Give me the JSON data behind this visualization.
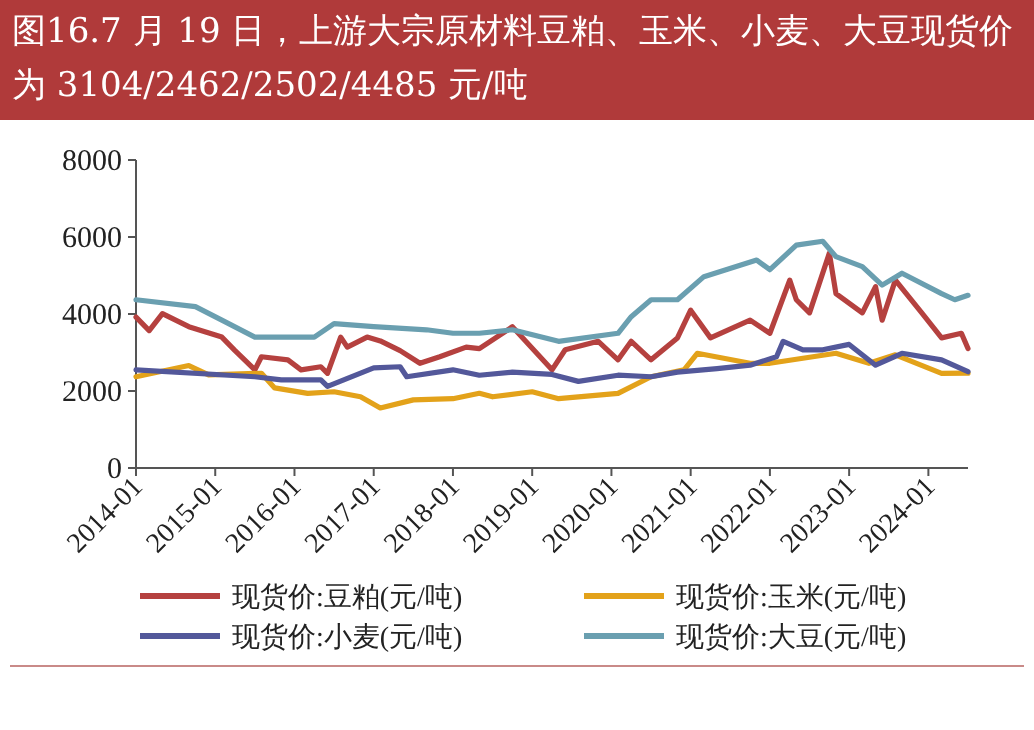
{
  "chart_data": {
    "type": "line",
    "title": "图16.7 月 19 日，上游大宗原材料豆粕、玉米、小麦、大豆现货价为 3104/2462/2502/4485 元/吨",
    "xlim": [
      "2014-01",
      "2024-07"
    ],
    "xticks": [
      "2014-01",
      "2015-01",
      "2016-01",
      "2017-01",
      "2018-01",
      "2019-01",
      "2020-01",
      "2021-01",
      "2022-01",
      "2023-01",
      "2024-01"
    ],
    "ylim": [
      0,
      8000
    ],
    "yticks": [
      0,
      2000,
      4000,
      6000,
      8000
    ],
    "grid": false,
    "legend": "bottom",
    "marker": "none",
    "line_style": "solid",
    "series": [
      {
        "name": "现货价:豆粕(元/吨)",
        "color": "#b5413f",
        "x": [
          "2014-01",
          "2014-03",
          "2014-05",
          "2014-09",
          "2015-02",
          "2015-04",
          "2015-07",
          "2015-08",
          "2015-12",
          "2016-02",
          "2016-05",
          "2016-06",
          "2016-08",
          "2016-09",
          "2016-12",
          "2017-02",
          "2017-05",
          "2017-08",
          "2017-11",
          "2018-03",
          "2018-05",
          "2018-10",
          "2019-04",
          "2019-06",
          "2019-11",
          "2020-02",
          "2020-04",
          "2020-07",
          "2020-11",
          "2021-01",
          "2021-04",
          "2021-10",
          "2022-01",
          "2022-04",
          "2022-05",
          "2022-07",
          "2022-10",
          "2022-11",
          "2023-03",
          "2023-05",
          "2023-06",
          "2023-08",
          "2023-12",
          "2024-03",
          "2024-06",
          "2024-07"
        ],
        "values": [
          3920,
          3570,
          4010,
          3670,
          3400,
          3050,
          2550,
          2890,
          2810,
          2550,
          2630,
          2460,
          3400,
          3140,
          3400,
          3300,
          3050,
          2720,
          2890,
          3140,
          3100,
          3670,
          2550,
          3070,
          3290,
          2810,
          3290,
          2810,
          3380,
          4100,
          3380,
          3840,
          3500,
          4880,
          4370,
          4030,
          5580,
          4530,
          4030,
          4710,
          3840,
          4880,
          4030,
          3380,
          3500,
          3104
        ]
      },
      {
        "name": "现货价:玉米(元/吨)",
        "color": "#e3a21a",
        "x": [
          "2014-01",
          "2014-09",
          "2014-12",
          "2015-08",
          "2015-10",
          "2016-03",
          "2016-07",
          "2016-11",
          "2017-02",
          "2017-07",
          "2018-01",
          "2018-05",
          "2018-07",
          "2019-01",
          "2019-05",
          "2020-02",
          "2020-07",
          "2020-12",
          "2021-02",
          "2021-10",
          "2022-01",
          "2022-11",
          "2023-04",
          "2023-08",
          "2024-03",
          "2024-07"
        ],
        "values": [
          2370,
          2660,
          2420,
          2460,
          2080,
          1940,
          1980,
          1850,
          1560,
          1770,
          1800,
          1940,
          1850,
          1980,
          1800,
          1940,
          2370,
          2550,
          2980,
          2720,
          2720,
          2980,
          2720,
          2940,
          2460,
          2462
        ]
      },
      {
        "name": "现货价:小麦(元/吨)",
        "color": "#53589a",
        "x": [
          "2014-01",
          "2015-07",
          "2015-11",
          "2016-05",
          "2016-06",
          "2017-01",
          "2017-05",
          "2017-06",
          "2018-01",
          "2018-05",
          "2018-10",
          "2019-04",
          "2019-08",
          "2020-02",
          "2020-07",
          "2020-11",
          "2021-05",
          "2021-10",
          "2022-02",
          "2022-03",
          "2022-06",
          "2022-09",
          "2023-01",
          "2023-05",
          "2023-09",
          "2024-03",
          "2024-07"
        ],
        "values": [
          2550,
          2370,
          2290,
          2290,
          2120,
          2600,
          2630,
          2370,
          2550,
          2410,
          2490,
          2430,
          2250,
          2410,
          2370,
          2490,
          2580,
          2670,
          2890,
          3290,
          3070,
          3070,
          3210,
          2670,
          2980,
          2810,
          2502
        ]
      },
      {
        "name": "现货价:大豆(元/吨)",
        "color": "#6a9fb0",
        "x": [
          "2014-01",
          "2014-10",
          "2015-02",
          "2015-07",
          "2016-04",
          "2016-07",
          "2017-01",
          "2017-09",
          "2018-01",
          "2018-05",
          "2018-10",
          "2019-05",
          "2020-02",
          "2020-04",
          "2020-07",
          "2020-11",
          "2021-03",
          "2021-11",
          "2022-01",
          "2022-05",
          "2022-09",
          "2022-11",
          "2023-03",
          "2023-06",
          "2023-09",
          "2024-03",
          "2024-05",
          "2024-07"
        ],
        "values": [
          4370,
          4190,
          3840,
          3400,
          3400,
          3750,
          3670,
          3590,
          3500,
          3500,
          3590,
          3290,
          3500,
          3930,
          4370,
          4370,
          4970,
          5400,
          5150,
          5790,
          5890,
          5490,
          5230,
          4750,
          5060,
          4530,
          4370,
          4485
        ]
      }
    ]
  }
}
